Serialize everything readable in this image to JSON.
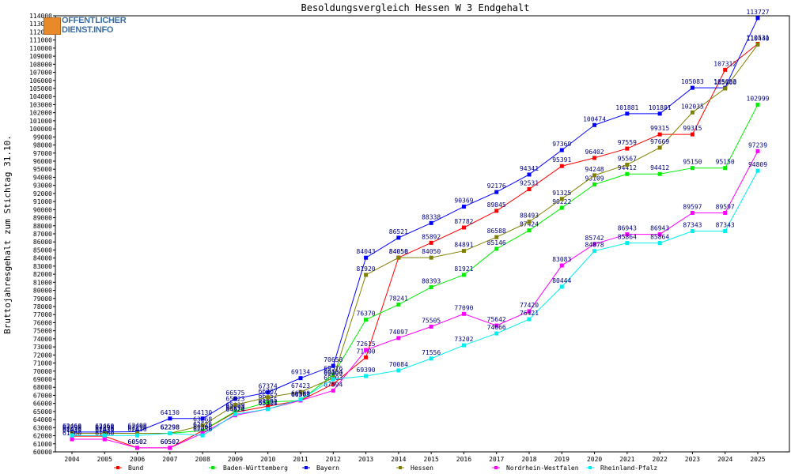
{
  "logo": {
    "line1": "OFFENTLICHER",
    "line2": "DIENST.INFO"
  },
  "chart_data": {
    "type": "line",
    "title": "Besoldungsvergleich Hessen W 3 Endgehalt",
    "xlabel": "",
    "ylabel": "Bruttojahresgehalt zum Stichtag 31.10.",
    "x": [
      2004,
      2005,
      2006,
      2007,
      2008,
      2009,
      2010,
      2011,
      2012,
      2013,
      2014,
      2015,
      2016,
      2017,
      2018,
      2019,
      2020,
      2021,
      2022,
      2023,
      2024,
      2025
    ],
    "ylim": [
      60000,
      114000
    ],
    "ytick_step": 1000,
    "grid": false,
    "legend_position": "bottom",
    "series": [
      {
        "name": "Bund",
        "color": "#ff0000",
        "values": [
          61939,
          61939,
          60502,
          60502,
          62626,
          64905,
          65665,
          66363,
          68403,
          71700,
          84058,
          85892,
          87782,
          89845,
          92531,
          95391,
          96402,
          97559,
          99315,
          99315,
          107312,
          110531
        ]
      },
      {
        "name": "Baden-Württemberg",
        "color": "#00ee00",
        "values": [
          62298,
          62298,
          62298,
          62298,
          62626,
          65029,
          66157,
          66363,
          69576,
          76370,
          78241,
          80393,
          81921,
          85146,
          87424,
          90222,
          93109,
          94412,
          94412,
          95150,
          95150,
          102999
        ]
      },
      {
        "name": "Bayern",
        "color": "#0000ff",
        "values": [
          62460,
          62460,
          62498,
          64130,
          64130,
          66575,
          67374,
          69134,
          70658,
          84043,
          86521,
          88338,
          90369,
          92176,
          94341,
          97369,
          100474,
          101881,
          101881,
          105083,
          105083,
          113727
        ]
      },
      {
        "name": "Hessen",
        "color": "#808000",
        "values": [
          62298,
          62298,
          62298,
          62298,
          63268,
          65823,
          66767,
          67423,
          69134,
          81920,
          84050,
          84050,
          84891,
          86588,
          88493,
          91325,
          94248,
          95567,
          97669,
          102035,
          105000,
          110440
        ]
      },
      {
        "name": "Nordrhein-Westfalen",
        "color": "#ff00ff",
        "values": [
          61560,
          61560,
          60502,
          60502,
          62306,
          64524,
          65321,
          66363,
          67594,
          72615,
          74097,
          75505,
          77090,
          75642,
          77420,
          83083,
          85742,
          86943,
          86943,
          89597,
          89597,
          97239
        ]
      },
      {
        "name": "Rheinland-Pfalz",
        "color": "#00eeee",
        "values": [
          62036,
          62036,
          62036,
          62298,
          62036,
          64670,
          65300,
          66500,
          69000,
          69390,
          70084,
          71556,
          73202,
          74666,
          76421,
          80444,
          84878,
          85864,
          85864,
          87343,
          87343,
          94809
        ]
      }
    ]
  }
}
